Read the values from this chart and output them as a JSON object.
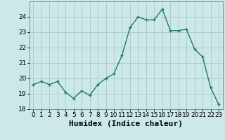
{
  "x": [
    0,
    1,
    2,
    3,
    4,
    5,
    6,
    7,
    8,
    9,
    10,
    11,
    12,
    13,
    14,
    15,
    16,
    17,
    18,
    19,
    20,
    21,
    22,
    23
  ],
  "y": [
    19.6,
    19.8,
    19.6,
    19.8,
    19.1,
    18.7,
    19.2,
    18.9,
    19.6,
    20.0,
    20.3,
    21.5,
    23.3,
    24.0,
    23.8,
    23.8,
    24.5,
    23.1,
    23.1,
    23.2,
    21.9,
    21.4,
    19.4,
    18.3
  ],
  "line_color": "#1a7a6e",
  "marker": "+",
  "bg_color": "#cce8e8",
  "grid_color": "#b0cccc",
  "xlabel": "Humidex (Indice chaleur)",
  "ylim": [
    18,
    25
  ],
  "xlim": [
    -0.5,
    23.5
  ],
  "yticks": [
    18,
    19,
    20,
    21,
    22,
    23,
    24
  ],
  "xticks": [
    0,
    1,
    2,
    3,
    4,
    5,
    6,
    7,
    8,
    9,
    10,
    11,
    12,
    13,
    14,
    15,
    16,
    17,
    18,
    19,
    20,
    21,
    22,
    23
  ],
  "tick_fontsize": 6.5,
  "xlabel_fontsize": 8,
  "linewidth": 1.0,
  "markersize": 3.5,
  "markeredgewidth": 1.0
}
